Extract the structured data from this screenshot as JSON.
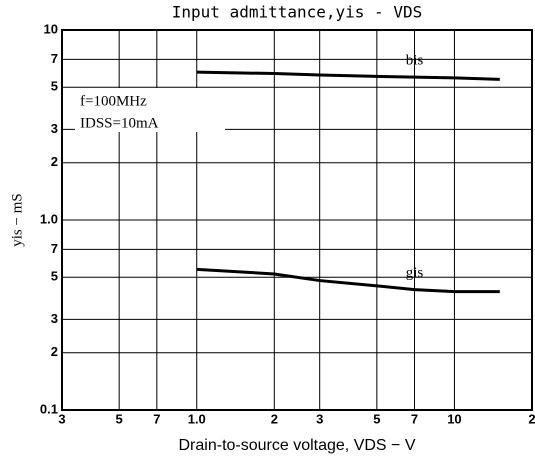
{
  "chart_data": {
    "type": "line",
    "title": "Input admittance,yis - VDS",
    "x_label": "Drain-to-source voltage, VDS − V",
    "y_label": "yis − mS",
    "annotations": [
      "f=100MHz",
      "IDSS=10mA"
    ],
    "log_x": true,
    "log_y": true,
    "grid": true,
    "x": [
      1,
      2,
      3,
      5,
      7,
      10,
      15
    ],
    "series": [
      {
        "name": "bis",
        "color": "#000000",
        "values": [
          6.0,
          5.9,
          5.8,
          5.7,
          5.65,
          5.6,
          5.5
        ]
      },
      {
        "name": "gis",
        "color": "#000000",
        "values": [
          0.55,
          0.52,
          0.48,
          0.45,
          0.43,
          0.42,
          0.42
        ]
      }
    ],
    "xlim": [
      0.3,
      20
    ],
    "xticks": [
      {
        "value": 0.3,
        "label": "3"
      },
      {
        "value": 0.5,
        "label": "5"
      },
      {
        "value": 0.7,
        "label": "7"
      },
      {
        "value": 1,
        "label": "1.0"
      },
      2,
      3,
      5,
      7,
      10,
      {
        "value": 20,
        "label": "2"
      }
    ],
    "ylim": [
      0.1,
      10
    ],
    "yticks": [
      {
        "value": 0.1,
        "label": "0.1"
      },
      {
        "value": 0.2,
        "label": "2"
      },
      {
        "value": 0.3,
        "label": "3"
      },
      {
        "value": 0.5,
        "label": "5"
      },
      {
        "value": 0.7,
        "label": "7"
      },
      {
        "value": 1,
        "label": "1.0"
      },
      2,
      3,
      5,
      7,
      10
    ]
  }
}
